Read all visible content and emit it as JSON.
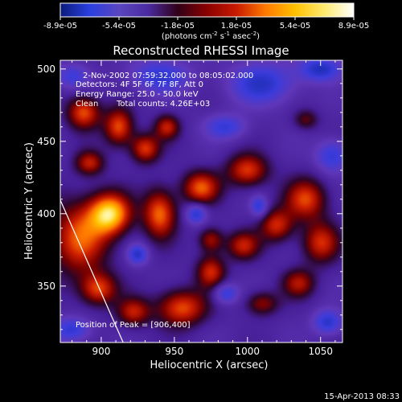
{
  "chart_data": {
    "type": "heatmap",
    "title": "Reconstructed RHESSI Image",
    "xlabel": "Heliocentric X (arcsec)",
    "ylabel": "Heliocentric Y (arcsec)",
    "xlim": [
      872,
      1065
    ],
    "ylim": [
      311,
      506
    ],
    "x_ticks": [
      900,
      950,
      1000,
      1050
    ],
    "y_ticks": [
      350,
      400,
      450,
      500
    ],
    "colorbar": {
      "ticks": [
        "-8.9e-05",
        "-5.4e-05",
        "-1.8e-05",
        "1.8e-05",
        "5.4e-05",
        "8.9e-05"
      ],
      "range": [
        -8.9e-05,
        8.9e-05
      ],
      "unit_text": "(photons cm",
      "unit_sup1": "-2",
      "unit_mid": " s",
      "unit_sup2": "-1",
      "unit_end": " asec",
      "unit_sup3": "-2",
      "unit_close": ")",
      "colormap": [
        "#0a1a7a",
        "#2a3fe0",
        "#5a46c0",
        "#4a2aa0",
        "#300018",
        "#8a0000",
        "#c81a00",
        "#ff7a00",
        "#ffc000",
        "#ffeb70",
        "#ffffff"
      ]
    },
    "annotations": {
      "time_range": "2-Nov-2002 07:59:32.000 to 08:05:02.000",
      "detectors": "Detectors: 4F 5F 6F 7F 8F, Att 0",
      "energy": "Energy Range: 25.0 - 50.0 keV",
      "method": "Clean",
      "counts": "Total counts: 4.26E+03",
      "peak": "Position of Peak = [906,400]"
    },
    "peak": [
      906,
      400
    ],
    "limb_line": [
      [
        870,
        414
      ],
      [
        915,
        311
      ]
    ],
    "blobs": [
      {
        "x": 906,
        "y": 400,
        "sx": 10,
        "sy": 10,
        "a": 1.0
      },
      {
        "x": 885,
        "y": 383,
        "sx": 14,
        "sy": 18,
        "a": 0.7
      },
      {
        "x": 940,
        "y": 400,
        "sx": 8,
        "sy": 12,
        "a": 0.75
      },
      {
        "x": 968,
        "y": 418,
        "sx": 9,
        "sy": 8,
        "a": 0.7
      },
      {
        "x": 1000,
        "y": 430,
        "sx": 10,
        "sy": 8,
        "a": 0.65
      },
      {
        "x": 1040,
        "y": 410,
        "sx": 10,
        "sy": 10,
        "a": 0.65
      },
      {
        "x": 1050,
        "y": 380,
        "sx": 9,
        "sy": 10,
        "a": 0.6
      },
      {
        "x": 1020,
        "y": 392,
        "sx": 8,
        "sy": 8,
        "a": 0.6
      },
      {
        "x": 997,
        "y": 378,
        "sx": 8,
        "sy": 7,
        "a": 0.55
      },
      {
        "x": 975,
        "y": 360,
        "sx": 7,
        "sy": 8,
        "a": 0.6
      },
      {
        "x": 1035,
        "y": 352,
        "sx": 8,
        "sy": 7,
        "a": 0.5
      },
      {
        "x": 1010,
        "y": 338,
        "sx": 8,
        "sy": 6,
        "a": 0.45
      },
      {
        "x": 955,
        "y": 335,
        "sx": 12,
        "sy": 9,
        "a": 0.7
      },
      {
        "x": 922,
        "y": 332,
        "sx": 8,
        "sy": 7,
        "a": 0.55
      },
      {
        "x": 898,
        "y": 348,
        "sx": 9,
        "sy": 8,
        "a": 0.65
      },
      {
        "x": 888,
        "y": 470,
        "sx": 8,
        "sy": 8,
        "a": 0.7
      },
      {
        "x": 912,
        "y": 460,
        "sx": 7,
        "sy": 9,
        "a": 0.7
      },
      {
        "x": 930,
        "y": 445,
        "sx": 7,
        "sy": 7,
        "a": 0.65
      },
      {
        "x": 945,
        "y": 460,
        "sx": 6,
        "sy": 6,
        "a": 0.55
      },
      {
        "x": 892,
        "y": 435,
        "sx": 7,
        "sy": 6,
        "a": 0.55
      },
      {
        "x": 1040,
        "y": 465,
        "sx": 6,
        "sy": 5,
        "a": 0.35
      },
      {
        "x": 975,
        "y": 382,
        "sx": 6,
        "sy": 6,
        "a": 0.5
      }
    ],
    "voids": [
      {
        "x": 940,
        "y": 495,
        "sx": 14,
        "sy": 8,
        "a": 0.5
      },
      {
        "x": 1010,
        "y": 490,
        "sx": 16,
        "sy": 10,
        "a": 0.55
      },
      {
        "x": 1050,
        "y": 500,
        "sx": 10,
        "sy": 6,
        "a": 0.6
      },
      {
        "x": 1058,
        "y": 440,
        "sx": 8,
        "sy": 8,
        "a": 0.5
      },
      {
        "x": 985,
        "y": 460,
        "sx": 10,
        "sy": 6,
        "a": 0.45
      },
      {
        "x": 965,
        "y": 400,
        "sx": 5,
        "sy": 5,
        "a": 0.55
      },
      {
        "x": 1008,
        "y": 405,
        "sx": 4,
        "sy": 5,
        "a": 0.5
      },
      {
        "x": 925,
        "y": 372,
        "sx": 5,
        "sy": 5,
        "a": 0.55
      },
      {
        "x": 985,
        "y": 345,
        "sx": 6,
        "sy": 5,
        "a": 0.5
      },
      {
        "x": 1055,
        "y": 325,
        "sx": 7,
        "sy": 6,
        "a": 0.55
      },
      {
        "x": 880,
        "y": 320,
        "sx": 9,
        "sy": 6,
        "a": 0.5
      },
      {
        "x": 880,
        "y": 495,
        "sx": 8,
        "sy": 6,
        "a": 0.4
      }
    ]
  },
  "footer": {
    "date": "15-Apr-2013 08:33"
  }
}
